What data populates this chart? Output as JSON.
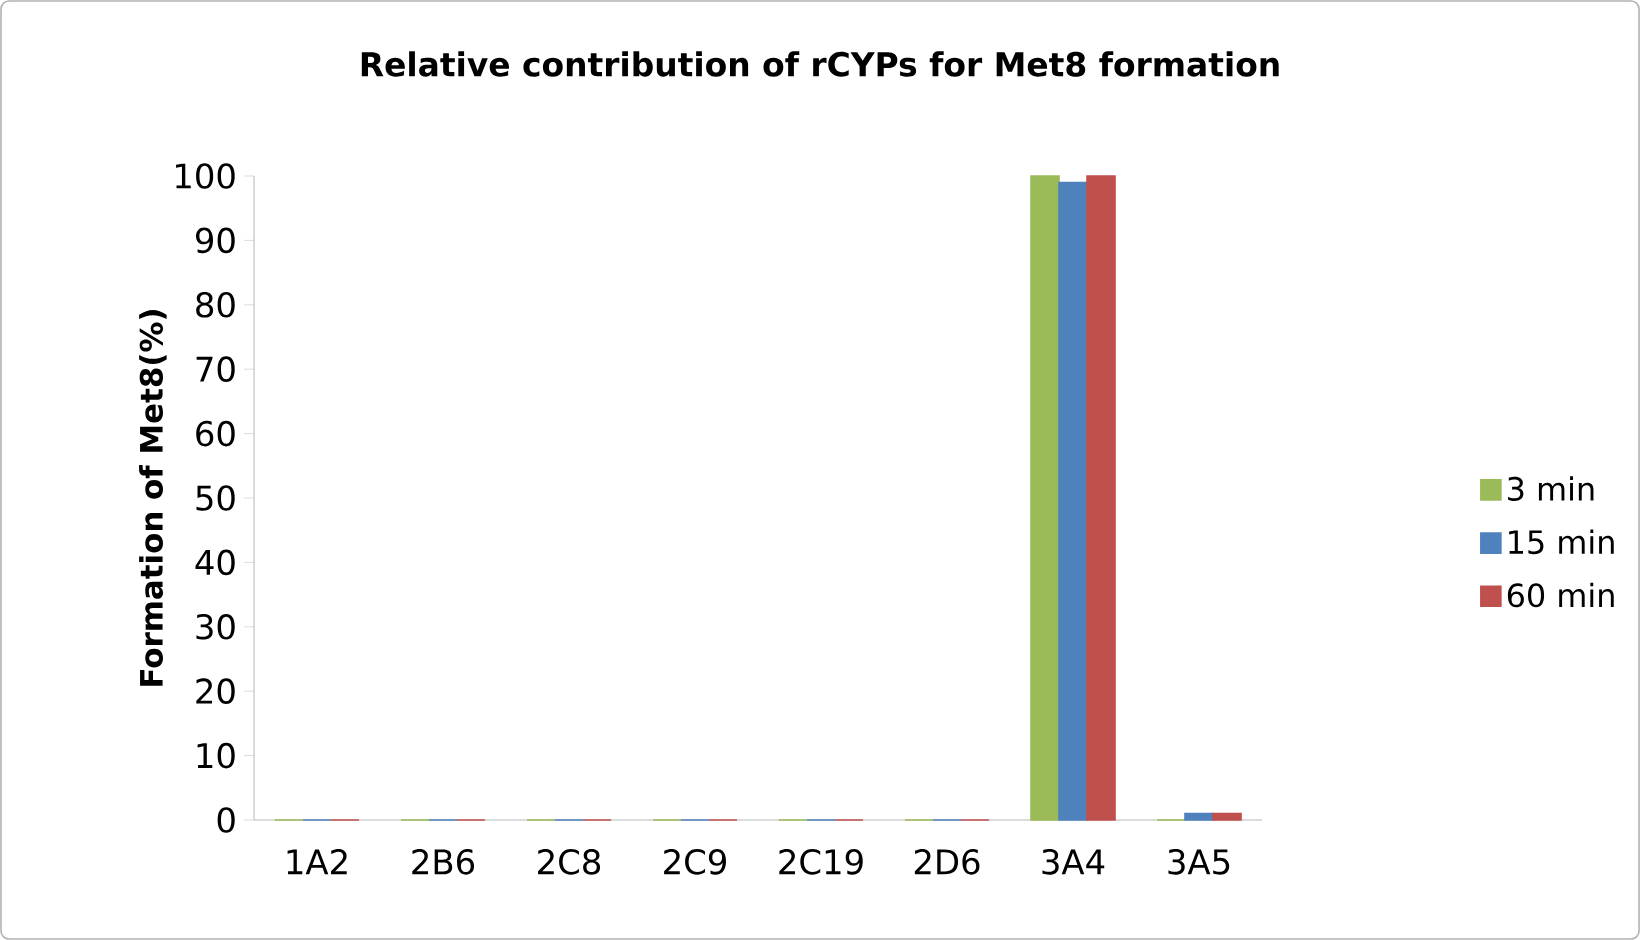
{
  "chart_data": {
    "type": "bar",
    "title": "Relative contribution of rCYPs for Met8 formation",
    "ylabel": "Formation of Met8(%)",
    "categories": [
      "1A2",
      "2B6",
      "2C8",
      "2C9",
      "2C19",
      "2D6",
      "3A4",
      "3A5"
    ],
    "series": [
      {
        "name": "3 min",
        "color": "#9bbb59",
        "values": [
          0,
          0,
          0,
          0,
          0,
          0,
          100,
          0
        ]
      },
      {
        "name": "15 min",
        "color": "#4f81bd",
        "values": [
          0,
          0,
          0,
          0,
          0,
          0,
          99,
          1
        ]
      },
      {
        "name": "60 min",
        "color": "#c0504d",
        "values": [
          0,
          0,
          0,
          0,
          0,
          0,
          100,
          1
        ]
      }
    ],
    "ylim": [
      0,
      100
    ],
    "yticks": [
      0,
      10,
      20,
      30,
      40,
      50,
      60,
      70,
      80,
      90,
      100
    ],
    "grid": false,
    "legend": "right"
  }
}
